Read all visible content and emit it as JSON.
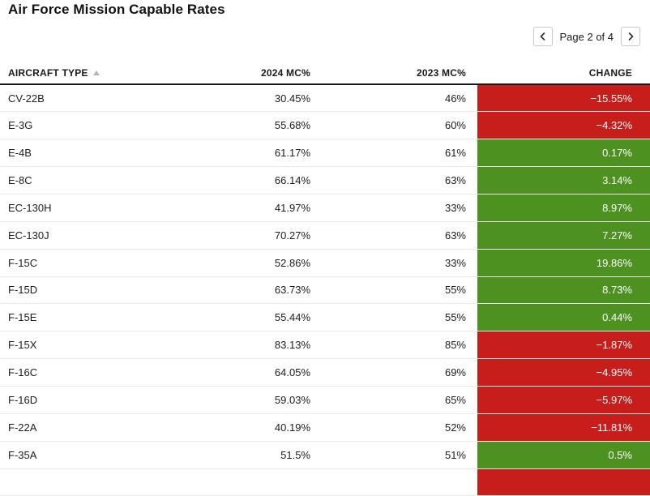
{
  "title": "Air Force Mission Capable Rates",
  "pagination": {
    "label": "Page 2 of 4",
    "prev_icon": "chevron-left",
    "next_icon": "chevron-right"
  },
  "colors": {
    "positive_bg": "#4d9221",
    "negative_bg": "#c81e1b"
  },
  "table": {
    "columns": [
      "AIRCRAFT TYPE",
      "2024 MC%",
      "2023 MC%",
      "CHANGE"
    ],
    "sort": {
      "column": "AIRCRAFT TYPE",
      "direction": "asc"
    },
    "rows": [
      {
        "type": "CV-22B",
        "mc2024": "30.45%",
        "mc2023": "46%",
        "change": "−15.55%",
        "trend": "negative"
      },
      {
        "type": "E-3G",
        "mc2024": "55.68%",
        "mc2023": "60%",
        "change": "−4.32%",
        "trend": "negative"
      },
      {
        "type": "E-4B",
        "mc2024": "61.17%",
        "mc2023": "61%",
        "change": "0.17%",
        "trend": "positive"
      },
      {
        "type": "E-8C",
        "mc2024": "66.14%",
        "mc2023": "63%",
        "change": "3.14%",
        "trend": "positive"
      },
      {
        "type": "EC-130H",
        "mc2024": "41.97%",
        "mc2023": "33%",
        "change": "8.97%",
        "trend": "positive"
      },
      {
        "type": "EC-130J",
        "mc2024": "70.27%",
        "mc2023": "63%",
        "change": "7.27%",
        "trend": "positive"
      },
      {
        "type": "F-15C",
        "mc2024": "52.86%",
        "mc2023": "33%",
        "change": "19.86%",
        "trend": "positive"
      },
      {
        "type": "F-15D",
        "mc2024": "63.73%",
        "mc2023": "55%",
        "change": "8.73%",
        "trend": "positive"
      },
      {
        "type": "F-15E",
        "mc2024": "55.44%",
        "mc2023": "55%",
        "change": "0.44%",
        "trend": "positive"
      },
      {
        "type": "F-15X",
        "mc2024": "83.13%",
        "mc2023": "85%",
        "change": "−1.87%",
        "trend": "negative"
      },
      {
        "type": "F-16C",
        "mc2024": "64.05%",
        "mc2023": "69%",
        "change": "−4.95%",
        "trend": "negative"
      },
      {
        "type": "F-16D",
        "mc2024": "59.03%",
        "mc2023": "65%",
        "change": "−5.97%",
        "trend": "negative"
      },
      {
        "type": "F-22A",
        "mc2024": "40.19%",
        "mc2023": "52%",
        "change": "−11.81%",
        "trend": "negative"
      },
      {
        "type": "F-35A",
        "mc2024": "51.5%",
        "mc2023": "51%",
        "change": "0.5%",
        "trend": "positive"
      }
    ],
    "partial_next_row": {
      "trend": "negative"
    }
  }
}
